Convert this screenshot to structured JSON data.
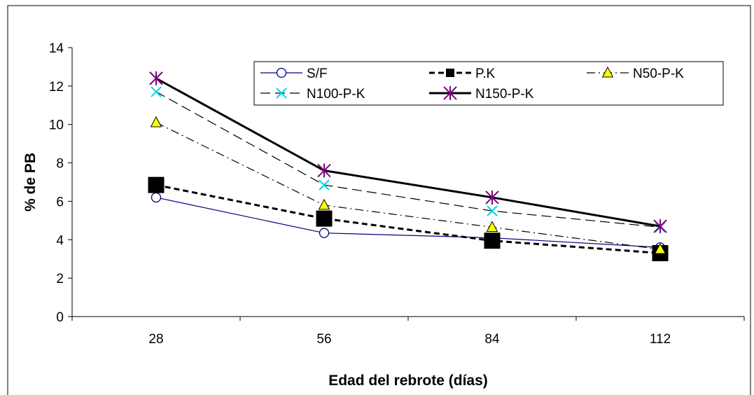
{
  "chart_data": {
    "type": "line",
    "title": "",
    "xlabel": "Edad del rebrote (días)",
    "ylabel": "% de PB",
    "categories": [
      "28",
      "56",
      "84",
      "112"
    ],
    "ylim": [
      0,
      14
    ],
    "yticks": [
      "0",
      "2",
      "4",
      "6",
      "8",
      "10",
      "12",
      "14"
    ],
    "grid": false,
    "legend_position": "top-right",
    "series": [
      {
        "name": "S/F",
        "values": [
          6.2,
          4.35,
          4.1,
          3.6
        ],
        "color": "#000080",
        "marker": "circle-open",
        "line": "solid-thin"
      },
      {
        "name": "P.K",
        "values": [
          6.85,
          5.1,
          3.95,
          3.3
        ],
        "color": "#000000",
        "marker": "square-filled",
        "line": "dashed-thick"
      },
      {
        "name": "N50-P-K",
        "values": [
          10.1,
          5.8,
          4.65,
          3.5
        ],
        "color": "#000000",
        "marker": "triangle-yellow",
        "line": "dash-dot"
      },
      {
        "name": "N100-P-K",
        "values": [
          11.7,
          6.85,
          5.5,
          4.65
        ],
        "color": "#000000",
        "marker": "x-cyan",
        "line": "long-dash"
      },
      {
        "name": "N150-P-K",
        "values": [
          12.4,
          7.6,
          6.2,
          4.7
        ],
        "color": "#000000",
        "marker": "star-purple",
        "line": "solid-thick"
      }
    ]
  }
}
